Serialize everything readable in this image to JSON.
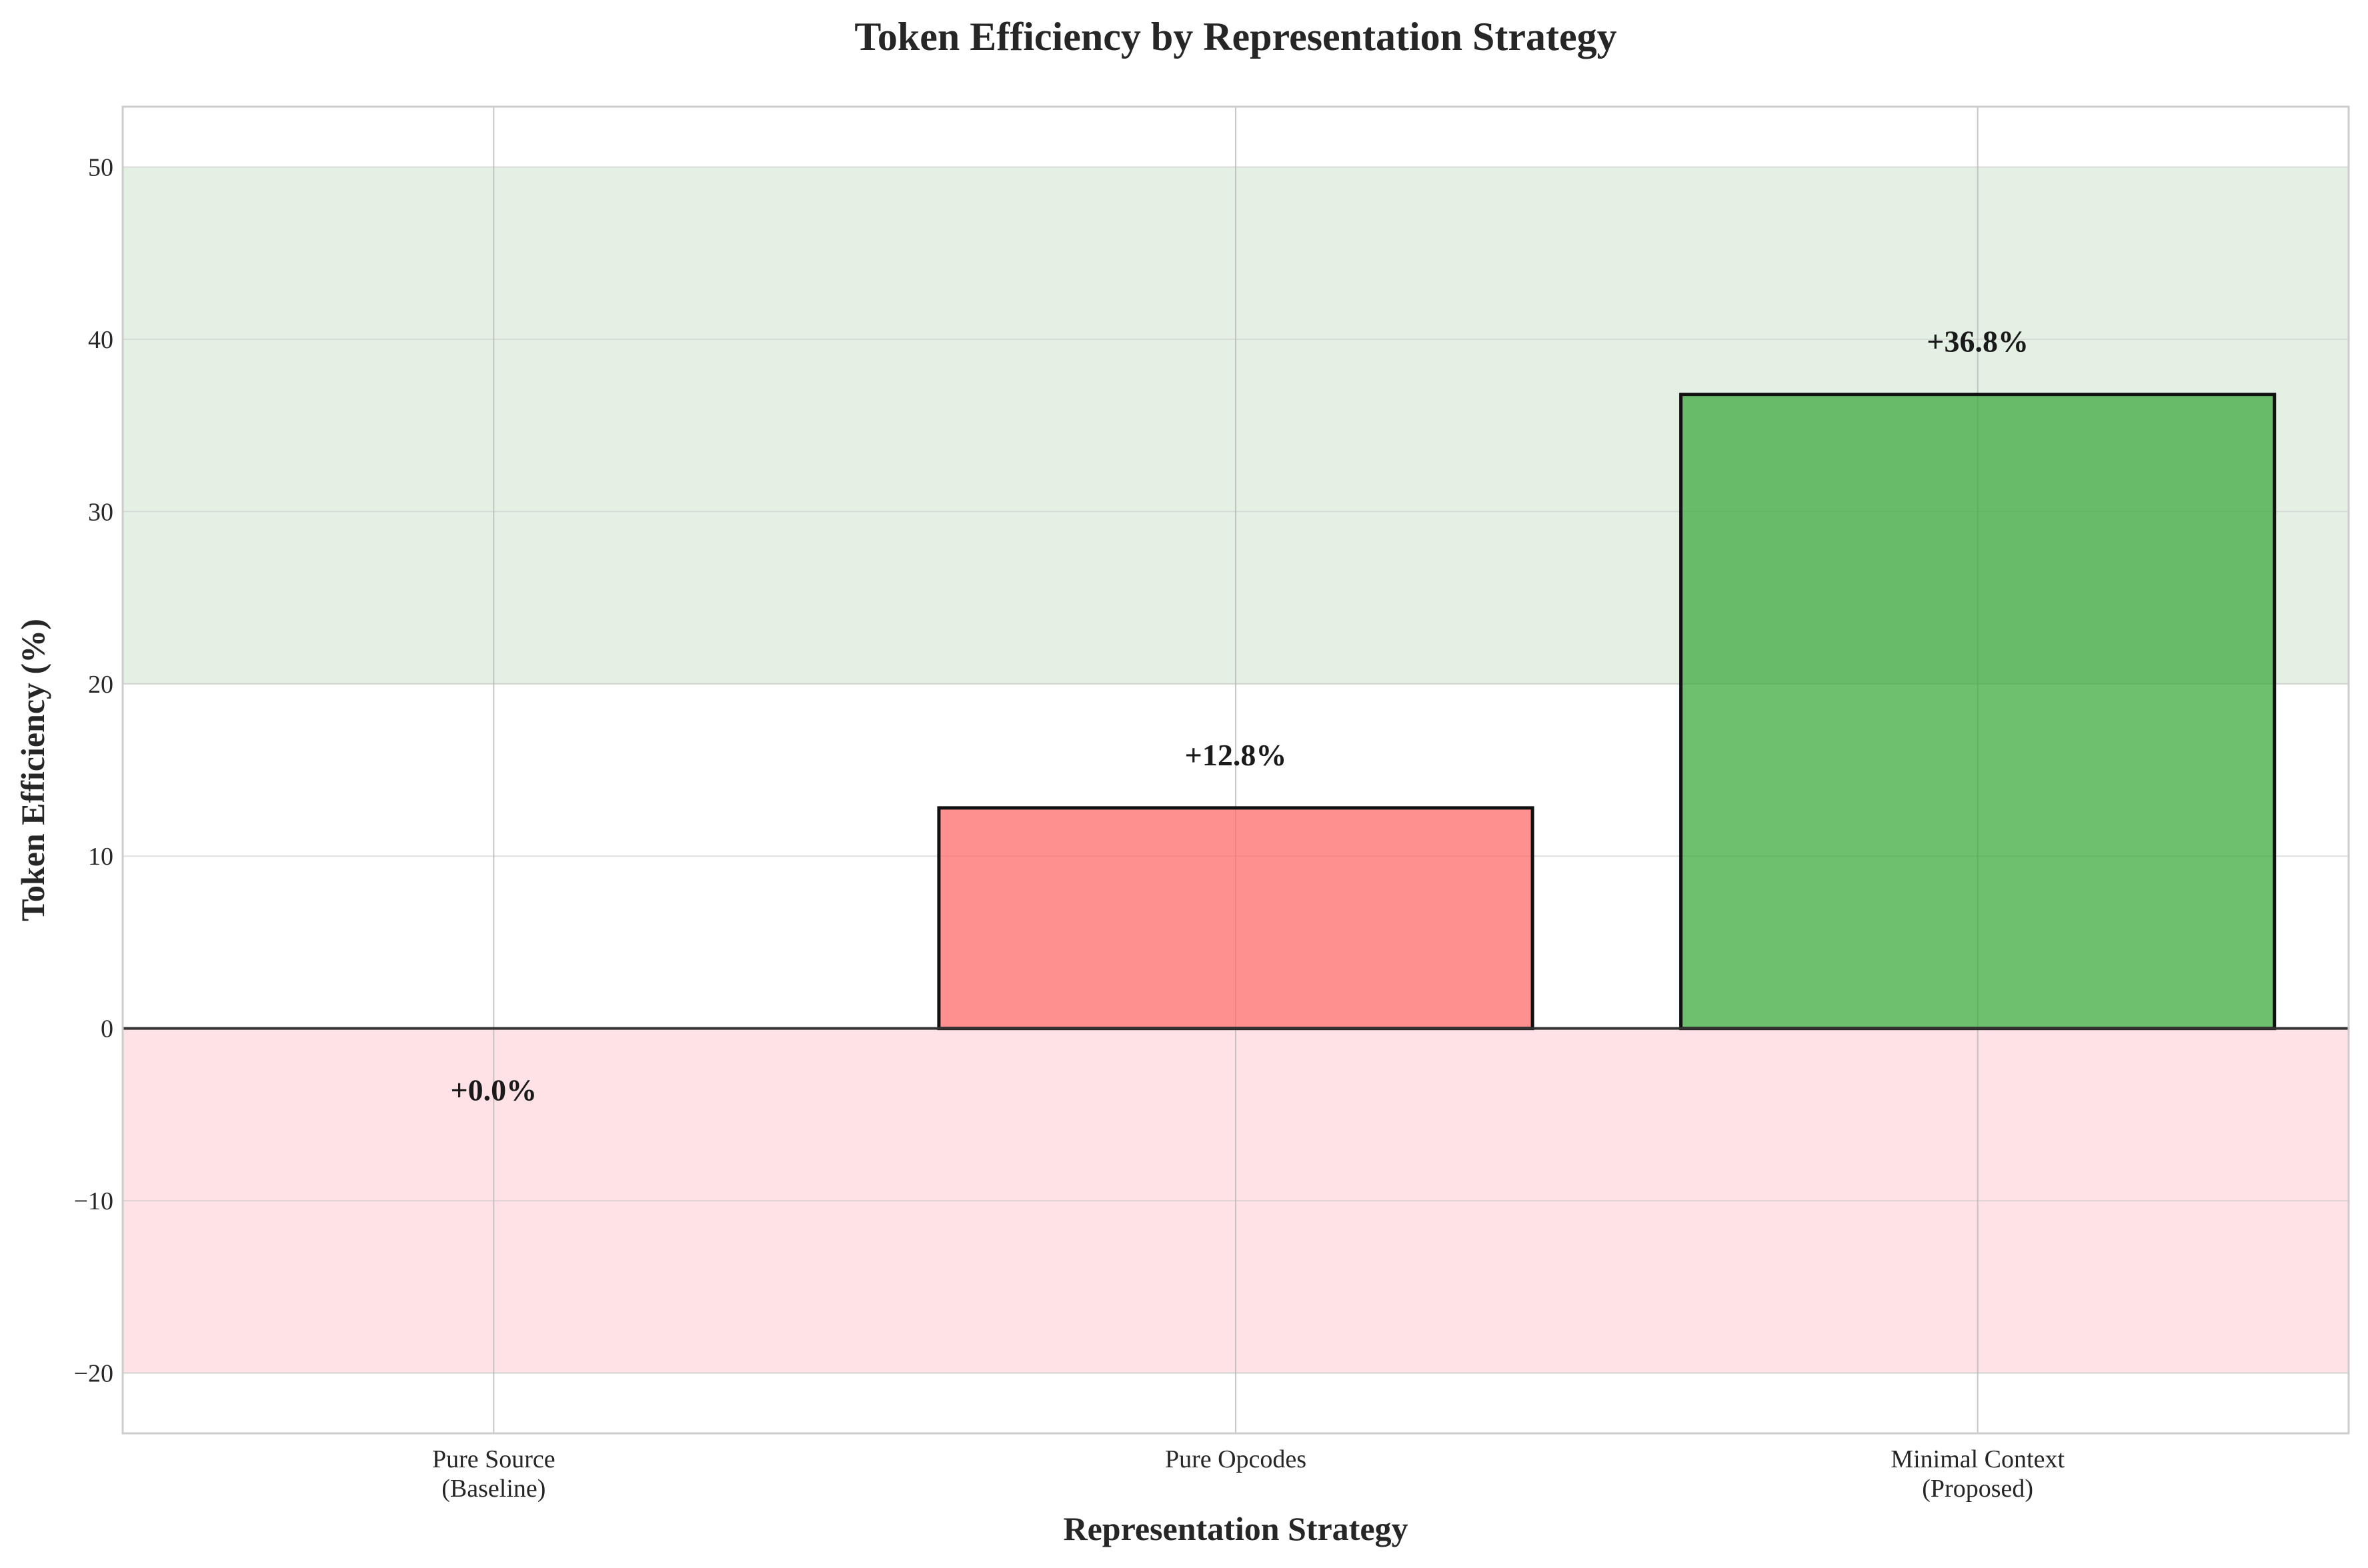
{
  "chart_data": {
    "type": "bar",
    "title": "Token Efficiency by Representation Strategy",
    "xlabel": "Representation Strategy",
    "ylabel": "Token Efficiency (%)",
    "categories": [
      [
        "Pure Source",
        "(Baseline)"
      ],
      [
        "Pure Opcodes"
      ],
      [
        "Minimal Context",
        "(Proposed)"
      ]
    ],
    "values": [
      0.0,
      12.8,
      36.8
    ],
    "value_labels": [
      "+0.0%",
      "+12.8%",
      "+36.8%"
    ],
    "bar_colors": [
      "#2ca02c",
      "#ff6b6b",
      "#3da93d"
    ],
    "ylim": [
      -23.5,
      53.5
    ],
    "yticks": [
      -20,
      -10,
      0,
      10,
      20,
      30,
      40,
      50
    ],
    "ytick_labels": [
      "−20",
      "−10",
      "0",
      "10",
      "20",
      "30",
      "40",
      "50"
    ],
    "bands": [
      {
        "from": 20,
        "to": 50,
        "color": "#e5f0e5"
      },
      {
        "from": -20,
        "to": 0,
        "color": "#ffe2e5"
      }
    ],
    "grid": true,
    "legend": "none"
  }
}
